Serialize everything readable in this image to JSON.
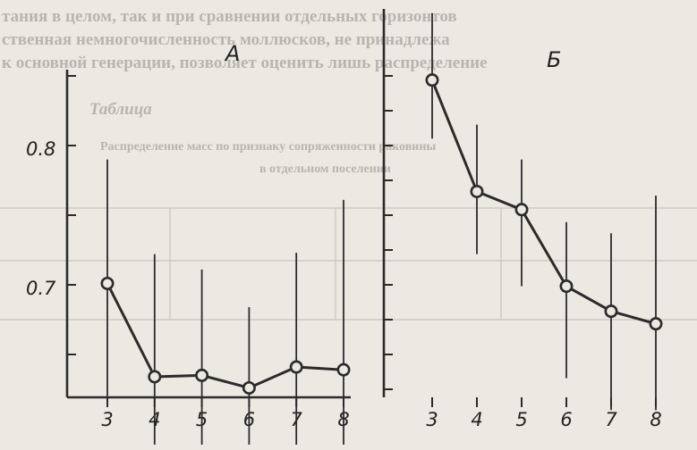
{
  "background_text": {
    "lines": [
      "тания в целом, так и при сравнении отдельных горизонтов",
      "ственная немногочисленность моллюсков, не принадлежа",
      "к основной генерации, позволяет оценить лишь распределение"
    ],
    "table_heading": "Таблица",
    "table_caption_1": "Распределение масс по признаку сопряженности раковины",
    "table_caption_2": "в отдельном поселении"
  },
  "chart_data": [
    {
      "type": "line",
      "panel_label": "А",
      "title": "",
      "xlabel": "",
      "ylabel": "",
      "x_ticks": [
        "3",
        "4",
        "5",
        "6",
        "7",
        "8"
      ],
      "y_ticks": [
        "0.8",
        "0.7"
      ],
      "ylim": [
        0.645,
        0.905
      ],
      "series": [
        {
          "x": [
            3,
            4,
            5,
            6,
            7,
            8
          ],
          "y": [
            0.701,
            0.634,
            0.635,
            0.626,
            0.641,
            0.639
          ],
          "error_low": [
            0.62,
            0.55,
            0.55,
            0.55,
            0.55,
            0.55
          ],
          "error_high": [
            0.79,
            0.722,
            0.711,
            0.684,
            0.723,
            0.761
          ]
        }
      ]
    },
    {
      "type": "line",
      "panel_label": "Б",
      "title": "",
      "xlabel": "",
      "ylabel": "",
      "x_ticks": [
        "3",
        "4",
        "5",
        "6",
        "7",
        "8"
      ],
      "series": [
        {
          "x": [
            3,
            4,
            5,
            6,
            7,
            8
          ],
          "y": [
            0.847,
            0.767,
            0.754,
            0.699,
            0.681,
            0.672
          ],
          "error_low": [
            0.805,
            0.722,
            0.699,
            0.633,
            0.61,
            0.61
          ],
          "error_high": [
            0.895,
            0.815,
            0.79,
            0.745,
            0.737,
            0.764
          ]
        }
      ]
    }
  ],
  "colors": {
    "paper": "#ece9e3",
    "ink": "#2b2b2b",
    "faded_print": "#b9b5ae"
  }
}
